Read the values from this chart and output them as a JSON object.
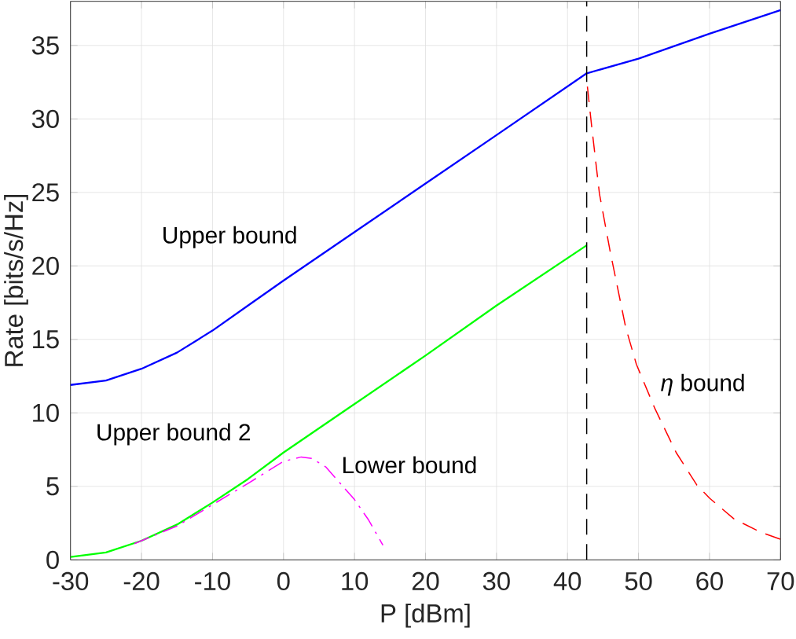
{
  "chart_data": {
    "type": "line",
    "xlabel": "P [dBm]",
    "ylabel": "Rate [bits/s/Hz]",
    "xlim": [
      -30,
      70
    ],
    "ylim": [
      0,
      38
    ],
    "xticks": [
      -30,
      -20,
      -10,
      0,
      10,
      20,
      30,
      40,
      50,
      60,
      70
    ],
    "yticks": [
      0,
      5,
      10,
      15,
      20,
      25,
      30,
      35
    ],
    "grid": true,
    "marker": "none",
    "series": [
      {
        "name": "Upper bound",
        "color": "#0000ff",
        "line_style": "solid",
        "x": [
          -30,
          -25,
          -20,
          -15,
          -10,
          -5,
          0,
          10,
          20,
          30,
          42.7,
          50,
          60,
          70
        ],
        "values": [
          11.9,
          12.2,
          13.0,
          14.1,
          15.6,
          17.3,
          19.0,
          22.3,
          25.6,
          28.9,
          33.1,
          34.1,
          35.8,
          37.4
        ]
      },
      {
        "name": "Upper bound 2",
        "color": "#00ff00",
        "line_style": "solid",
        "x": [
          -30,
          -25,
          -20,
          -15,
          -10,
          -5,
          0,
          10,
          20,
          30,
          42.7
        ],
        "values": [
          0.2,
          0.5,
          1.3,
          2.4,
          3.9,
          5.5,
          7.3,
          10.6,
          13.9,
          17.3,
          21.4
        ]
      },
      {
        "name": "Lower bound",
        "color": "#ff00ff",
        "line_style": "dashdot",
        "x": [
          -21,
          -15,
          -10,
          -5,
          -2,
          0,
          2.5,
          4,
          6,
          8,
          10,
          12,
          14
        ],
        "values": [
          1.1,
          2.3,
          3.75,
          5.2,
          6.1,
          6.7,
          7.0,
          6.9,
          6.3,
          5.2,
          4.1,
          2.7,
          1.0
        ]
      },
      {
        "name": "*η* bound",
        "color": "#ff0000",
        "line_style": "dashed",
        "x": [
          42.8,
          43.4,
          44.5,
          46,
          48.2,
          49.7,
          52.3,
          55.3,
          58.2,
          60,
          63.4,
          67.1,
          70
        ],
        "values": [
          32.2,
          29.5,
          24.9,
          21.0,
          15.8,
          13.3,
          10.3,
          7.3,
          5.1,
          4.2,
          2.8,
          1.9,
          1.4
        ]
      }
    ],
    "ref_lines": [
      {
        "axis": "x",
        "value": 42.7,
        "color": "#000000",
        "line_style": "dashed"
      }
    ]
  }
}
